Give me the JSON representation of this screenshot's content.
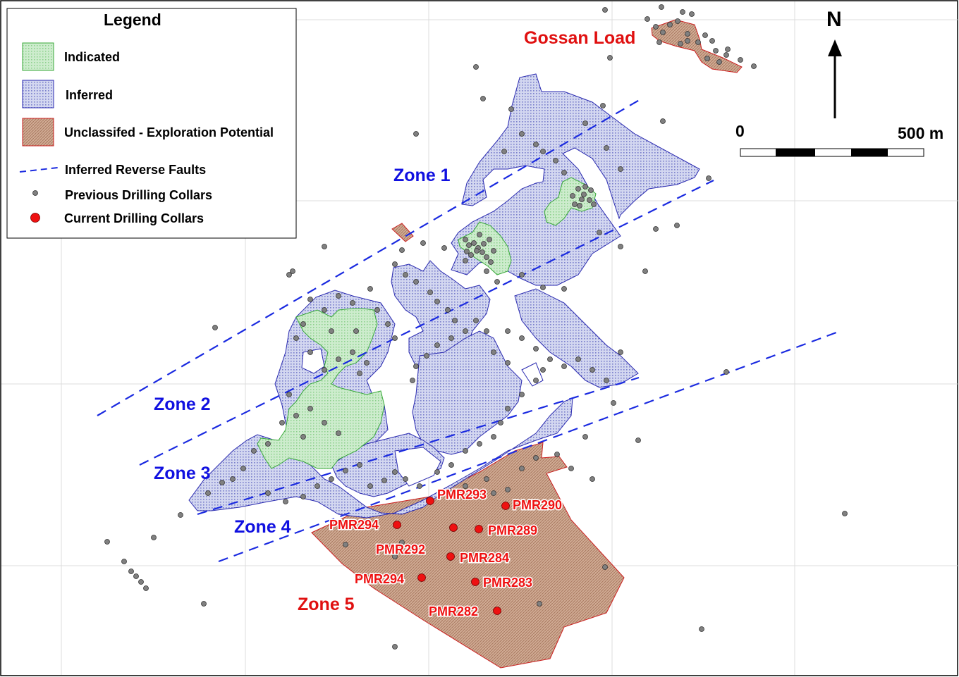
{
  "legend": {
    "title": "Legend",
    "items": [
      {
        "label": "Indicated",
        "kind": "indicated-swatch"
      },
      {
        "label": "Inferred",
        "kind": "inferred-swatch"
      },
      {
        "label": "Unclassifed - Exploration Potential",
        "kind": "unclassified-swatch"
      },
      {
        "label": "Inferred Reverse Faults",
        "kind": "fault-line"
      },
      {
        "label": "Previous Drilling Collars",
        "kind": "previous-collar-dot"
      },
      {
        "label": "Current Drilling Collars",
        "kind": "current-collar-dot"
      }
    ]
  },
  "north_arrow": {
    "label": "N"
  },
  "scale_bar": {
    "start_label": "0",
    "end_label": "500 m"
  },
  "zones": {
    "zone1": "Zone 1",
    "zone2": "Zone 2",
    "zone3": "Zone 3",
    "zone4": "Zone 4",
    "zone5": "Zone 5",
    "gossan": "Gossan Load"
  },
  "collars": {
    "pmr293": "PMR293",
    "pmr290": "PMR290",
    "pmr294a": "PMR294",
    "pmr289": "PMR289",
    "pmr292": "PMR292",
    "pmr284": "PMR284",
    "pmr294b": "PMR294",
    "pmr283": "PMR283",
    "pmr282": "PMR282"
  },
  "colors": {
    "indicated_fill": "#c8ecc8",
    "indicated_edge": "#3aaa3a",
    "inferred_fill": "#cfd4ef",
    "inferred_edge": "#2a2ab0",
    "unclassified_fill": "#caa48e",
    "unclassified_edge": "#cc2020",
    "fault": "#1a2ae0",
    "zone_label_blue": "#1010e0",
    "zone_label_red": "#e01010",
    "current_collar": "#ee1111",
    "previous_collar": "#808080",
    "grid": "#dcdcdc"
  }
}
